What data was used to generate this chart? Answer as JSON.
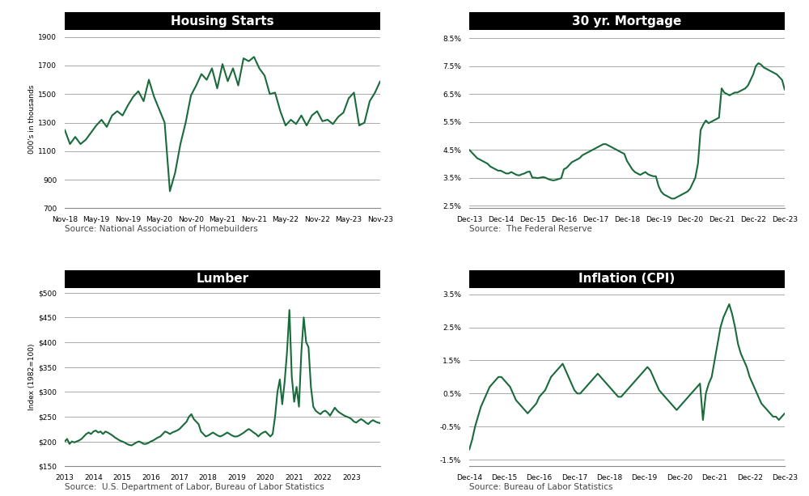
{
  "title_bg": "#000000",
  "title_fg": "#ffffff",
  "line_color": "#1a6b3c",
  "bg_color": "#ffffff",
  "grid_color": "#aaaaaa",
  "source_fontsize": 7.5,
  "title_fontsize": 11,
  "housing": {
    "title": "Housing Starts",
    "ylabel": "000's in thousands",
    "source": "Source: National Association of Homebuilders",
    "yticks": [
      700,
      900,
      1100,
      1300,
      1500,
      1700,
      1900
    ],
    "ylim": [
      700,
      1950
    ],
    "x_labels": [
      "Nov-18",
      "May-19",
      "Nov-19",
      "May-20",
      "Nov-20",
      "May-21",
      "Nov-21",
      "May-22",
      "Nov-22",
      "May-23",
      "Nov-23"
    ],
    "x_values": [
      0,
      6,
      12,
      18,
      24,
      30,
      36,
      42,
      48,
      54,
      60
    ],
    "data_x": [
      0,
      1,
      2,
      3,
      4,
      5,
      6,
      7,
      8,
      9,
      10,
      11,
      12,
      13,
      14,
      15,
      16,
      17,
      18,
      19,
      20,
      21,
      22,
      23,
      24,
      25,
      26,
      27,
      28,
      29,
      30,
      31,
      32,
      33,
      34,
      35,
      36,
      37,
      38,
      39,
      40,
      41,
      42,
      43,
      44,
      45,
      46,
      47,
      48,
      49,
      50,
      51,
      52,
      53,
      54,
      55,
      56,
      57,
      58,
      59,
      60
    ],
    "data_y": [
      1250,
      1150,
      1200,
      1150,
      1180,
      1230,
      1280,
      1320,
      1270,
      1350,
      1380,
      1350,
      1420,
      1480,
      1520,
      1450,
      1600,
      1480,
      1390,
      1300,
      820,
      950,
      1150,
      1300,
      1490,
      1560,
      1640,
      1600,
      1680,
      1540,
      1710,
      1590,
      1680,
      1560,
      1750,
      1730,
      1760,
      1680,
      1630,
      1500,
      1510,
      1380,
      1280,
      1320,
      1290,
      1350,
      1280,
      1350,
      1380,
      1310,
      1320,
      1290,
      1340,
      1370,
      1470,
      1510,
      1280,
      1300,
      1450,
      1510,
      1590
    ]
  },
  "mortgage": {
    "title": "30 yr. Mortgage",
    "source": "Source:  The Federal Reserve",
    "yticks": [
      2.5,
      3.5,
      4.5,
      5.5,
      6.5,
      7.5,
      8.5
    ],
    "ylim": [
      2.4,
      8.8
    ],
    "x_labels": [
      "Dec-13",
      "Dec-14",
      "Dec-15",
      "Dec-16",
      "Dec-17",
      "Dec-18",
      "Dec-19",
      "Dec-20",
      "Dec-21",
      "Dec-22",
      "Dec-23"
    ],
    "x_values": [
      0,
      12,
      24,
      36,
      48,
      60,
      72,
      84,
      96,
      108,
      120
    ],
    "data_x": [
      0,
      1,
      2,
      3,
      4,
      5,
      6,
      7,
      8,
      9,
      10,
      11,
      12,
      13,
      14,
      15,
      16,
      17,
      18,
      19,
      20,
      21,
      22,
      23,
      24,
      25,
      26,
      27,
      28,
      29,
      30,
      31,
      32,
      33,
      34,
      35,
      36,
      37,
      38,
      39,
      40,
      41,
      42,
      43,
      44,
      45,
      46,
      47,
      48,
      49,
      50,
      51,
      52,
      53,
      54,
      55,
      56,
      57,
      58,
      59,
      60,
      61,
      62,
      63,
      64,
      65,
      66,
      67,
      68,
      69,
      70,
      71,
      72,
      73,
      74,
      75,
      76,
      77,
      78,
      79,
      80,
      81,
      82,
      83,
      84,
      85,
      86,
      87,
      88,
      89,
      90,
      91,
      92,
      93,
      94,
      95,
      96,
      97,
      98,
      99,
      100,
      101,
      102,
      103,
      104,
      105,
      106,
      107,
      108,
      109,
      110,
      111,
      112,
      113,
      114,
      115,
      116,
      117,
      118,
      119,
      120
    ],
    "data_y": [
      4.5,
      4.4,
      4.3,
      4.2,
      4.15,
      4.1,
      4.05,
      4.0,
      3.9,
      3.85,
      3.8,
      3.75,
      3.75,
      3.7,
      3.65,
      3.65,
      3.7,
      3.65,
      3.6,
      3.58,
      3.62,
      3.65,
      3.7,
      3.72,
      3.5,
      3.5,
      3.48,
      3.5,
      3.52,
      3.5,
      3.45,
      3.42,
      3.4,
      3.42,
      3.45,
      3.48,
      3.8,
      3.85,
      3.95,
      4.05,
      4.1,
      4.15,
      4.2,
      4.3,
      4.35,
      4.4,
      4.45,
      4.5,
      4.55,
      4.6,
      4.65,
      4.7,
      4.7,
      4.65,
      4.6,
      4.55,
      4.5,
      4.45,
      4.4,
      4.35,
      4.1,
      3.95,
      3.8,
      3.7,
      3.65,
      3.6,
      3.65,
      3.7,
      3.62,
      3.58,
      3.55,
      3.55,
      3.2,
      3.0,
      2.9,
      2.85,
      2.8,
      2.75,
      2.75,
      2.8,
      2.85,
      2.9,
      2.95,
      3.0,
      3.1,
      3.3,
      3.5,
      4.0,
      5.2,
      5.4,
      5.55,
      5.45,
      5.5,
      5.55,
      5.6,
      5.65,
      6.7,
      6.55,
      6.5,
      6.45,
      6.5,
      6.55,
      6.55,
      6.6,
      6.65,
      6.7,
      6.8,
      7.0,
      7.2,
      7.5,
      7.6,
      7.55,
      7.45,
      7.4,
      7.35,
      7.3,
      7.25,
      7.2,
      7.1,
      7.0,
      6.65
    ]
  },
  "lumber": {
    "title": "Lumber",
    "ylabel": "Index (1982=100)",
    "source": "Source:  U.S. Department of Labor, Bureau of Labor Statistics",
    "yticks": [
      150,
      200,
      250,
      300,
      350,
      400,
      450,
      500
    ],
    "ylim": [
      150,
      510
    ],
    "x_labels": [
      "2013",
      "2014",
      "2015",
      "2016",
      "2017",
      "2018",
      "2019",
      "2020",
      "2021",
      "2022",
      "2023",
      ""
    ],
    "x_values": [
      0,
      12,
      24,
      36,
      48,
      60,
      72,
      84,
      96,
      108,
      120,
      132
    ],
    "data_x": [
      0,
      1,
      2,
      3,
      4,
      5,
      6,
      7,
      8,
      9,
      10,
      11,
      12,
      13,
      14,
      15,
      16,
      17,
      18,
      19,
      20,
      21,
      22,
      23,
      24,
      25,
      26,
      27,
      28,
      29,
      30,
      31,
      32,
      33,
      34,
      35,
      36,
      37,
      38,
      39,
      40,
      41,
      42,
      43,
      44,
      45,
      46,
      47,
      48,
      49,
      50,
      51,
      52,
      53,
      54,
      55,
      56,
      57,
      58,
      59,
      60,
      61,
      62,
      63,
      64,
      65,
      66,
      67,
      68,
      69,
      70,
      71,
      72,
      73,
      74,
      75,
      76,
      77,
      78,
      79,
      80,
      81,
      82,
      83,
      84,
      85,
      86,
      87,
      88,
      89,
      90,
      91,
      92,
      93,
      94,
      95,
      96,
      97,
      98,
      99,
      100,
      101,
      102,
      103,
      104,
      105,
      106,
      107,
      108,
      109,
      110,
      111,
      112,
      113,
      114,
      115,
      116,
      117,
      118,
      119,
      120,
      121,
      122,
      123,
      124,
      125,
      126,
      127,
      128,
      129,
      130,
      131,
      132
    ],
    "data_y": [
      200,
      205,
      195,
      200,
      198,
      200,
      202,
      205,
      210,
      215,
      218,
      215,
      220,
      222,
      218,
      220,
      215,
      220,
      218,
      215,
      212,
      208,
      205,
      202,
      200,
      198,
      195,
      193,
      192,
      195,
      198,
      200,
      198,
      195,
      195,
      197,
      200,
      202,
      205,
      208,
      210,
      215,
      220,
      218,
      215,
      218,
      220,
      222,
      225,
      230,
      235,
      240,
      250,
      255,
      245,
      240,
      235,
      220,
      215,
      210,
      212,
      215,
      218,
      215,
      212,
      210,
      212,
      215,
      218,
      215,
      212,
      210,
      210,
      212,
      215,
      218,
      222,
      225,
      222,
      218,
      215,
      210,
      215,
      218,
      220,
      215,
      210,
      215,
      250,
      300,
      325,
      275,
      320,
      380,
      465,
      330,
      280,
      310,
      270,
      380,
      450,
      400,
      390,
      310,
      270,
      262,
      258,
      255,
      260,
      262,
      258,
      252,
      260,
      268,
      262,
      258,
      255,
      252,
      250,
      248,
      245,
      240,
      238,
      242,
      245,
      242,
      238,
      235,
      240,
      243,
      240,
      238,
      237
    ]
  },
  "inflation": {
    "title": "Inflation (CPI)",
    "source": "Source: Bureau of Labor Statistics",
    "yticks": [
      -1.5,
      -0.5,
      0.5,
      1.5,
      2.5,
      3.5
    ],
    "ylim": [
      -1.7,
      3.7
    ],
    "x_labels": [
      "Dec-14",
      "Dec-15",
      "Dec-16",
      "Dec-17",
      "Dec-18",
      "Dec-19",
      "Dec-20",
      "Dec-21",
      "Dec-22",
      "Dec-23"
    ],
    "x_values": [
      0,
      12,
      24,
      36,
      48,
      60,
      72,
      84,
      96,
      108
    ],
    "data_x": [
      0,
      1,
      2,
      3,
      4,
      5,
      6,
      7,
      8,
      9,
      10,
      11,
      12,
      13,
      14,
      15,
      16,
      17,
      18,
      19,
      20,
      21,
      22,
      23,
      24,
      25,
      26,
      27,
      28,
      29,
      30,
      31,
      32,
      33,
      34,
      35,
      36,
      37,
      38,
      39,
      40,
      41,
      42,
      43,
      44,
      45,
      46,
      47,
      48,
      49,
      50,
      51,
      52,
      53,
      54,
      55,
      56,
      57,
      58,
      59,
      60,
      61,
      62,
      63,
      64,
      65,
      66,
      67,
      68,
      69,
      70,
      71,
      72,
      73,
      74,
      75,
      76,
      77,
      78,
      79,
      80,
      81,
      82,
      83,
      84,
      85,
      86,
      87,
      88,
      89,
      90,
      91,
      92,
      93,
      94,
      95,
      96,
      97,
      98,
      99,
      100,
      101,
      102,
      103,
      104,
      105,
      106,
      107,
      108
    ],
    "data_y": [
      -1.2,
      -0.9,
      -0.5,
      -0.2,
      0.1,
      0.3,
      0.5,
      0.7,
      0.8,
      0.9,
      1.0,
      1.0,
      0.9,
      0.8,
      0.7,
      0.5,
      0.3,
      0.2,
      0.1,
      0.0,
      -0.1,
      0.0,
      0.1,
      0.2,
      0.4,
      0.5,
      0.6,
      0.8,
      1.0,
      1.1,
      1.2,
      1.3,
      1.4,
      1.2,
      1.0,
      0.8,
      0.6,
      0.5,
      0.5,
      0.6,
      0.7,
      0.8,
      0.9,
      1.0,
      1.1,
      1.0,
      0.9,
      0.8,
      0.7,
      0.6,
      0.5,
      0.4,
      0.4,
      0.5,
      0.6,
      0.7,
      0.8,
      0.9,
      1.0,
      1.1,
      1.2,
      1.3,
      1.2,
      1.0,
      0.8,
      0.6,
      0.5,
      0.4,
      0.3,
      0.2,
      0.1,
      0.0,
      0.1,
      0.2,
      0.3,
      0.4,
      0.5,
      0.6,
      0.7,
      0.8,
      -0.3,
      0.5,
      0.8,
      1.0,
      1.5,
      2.0,
      2.5,
      2.8,
      3.0,
      3.2,
      2.9,
      2.5,
      2.0,
      1.7,
      1.5,
      1.3,
      1.0,
      0.8,
      0.6,
      0.4,
      0.2,
      0.1,
      0.0,
      -0.1,
      -0.2,
      -0.2,
      -0.3,
      -0.2,
      -0.1
    ]
  }
}
